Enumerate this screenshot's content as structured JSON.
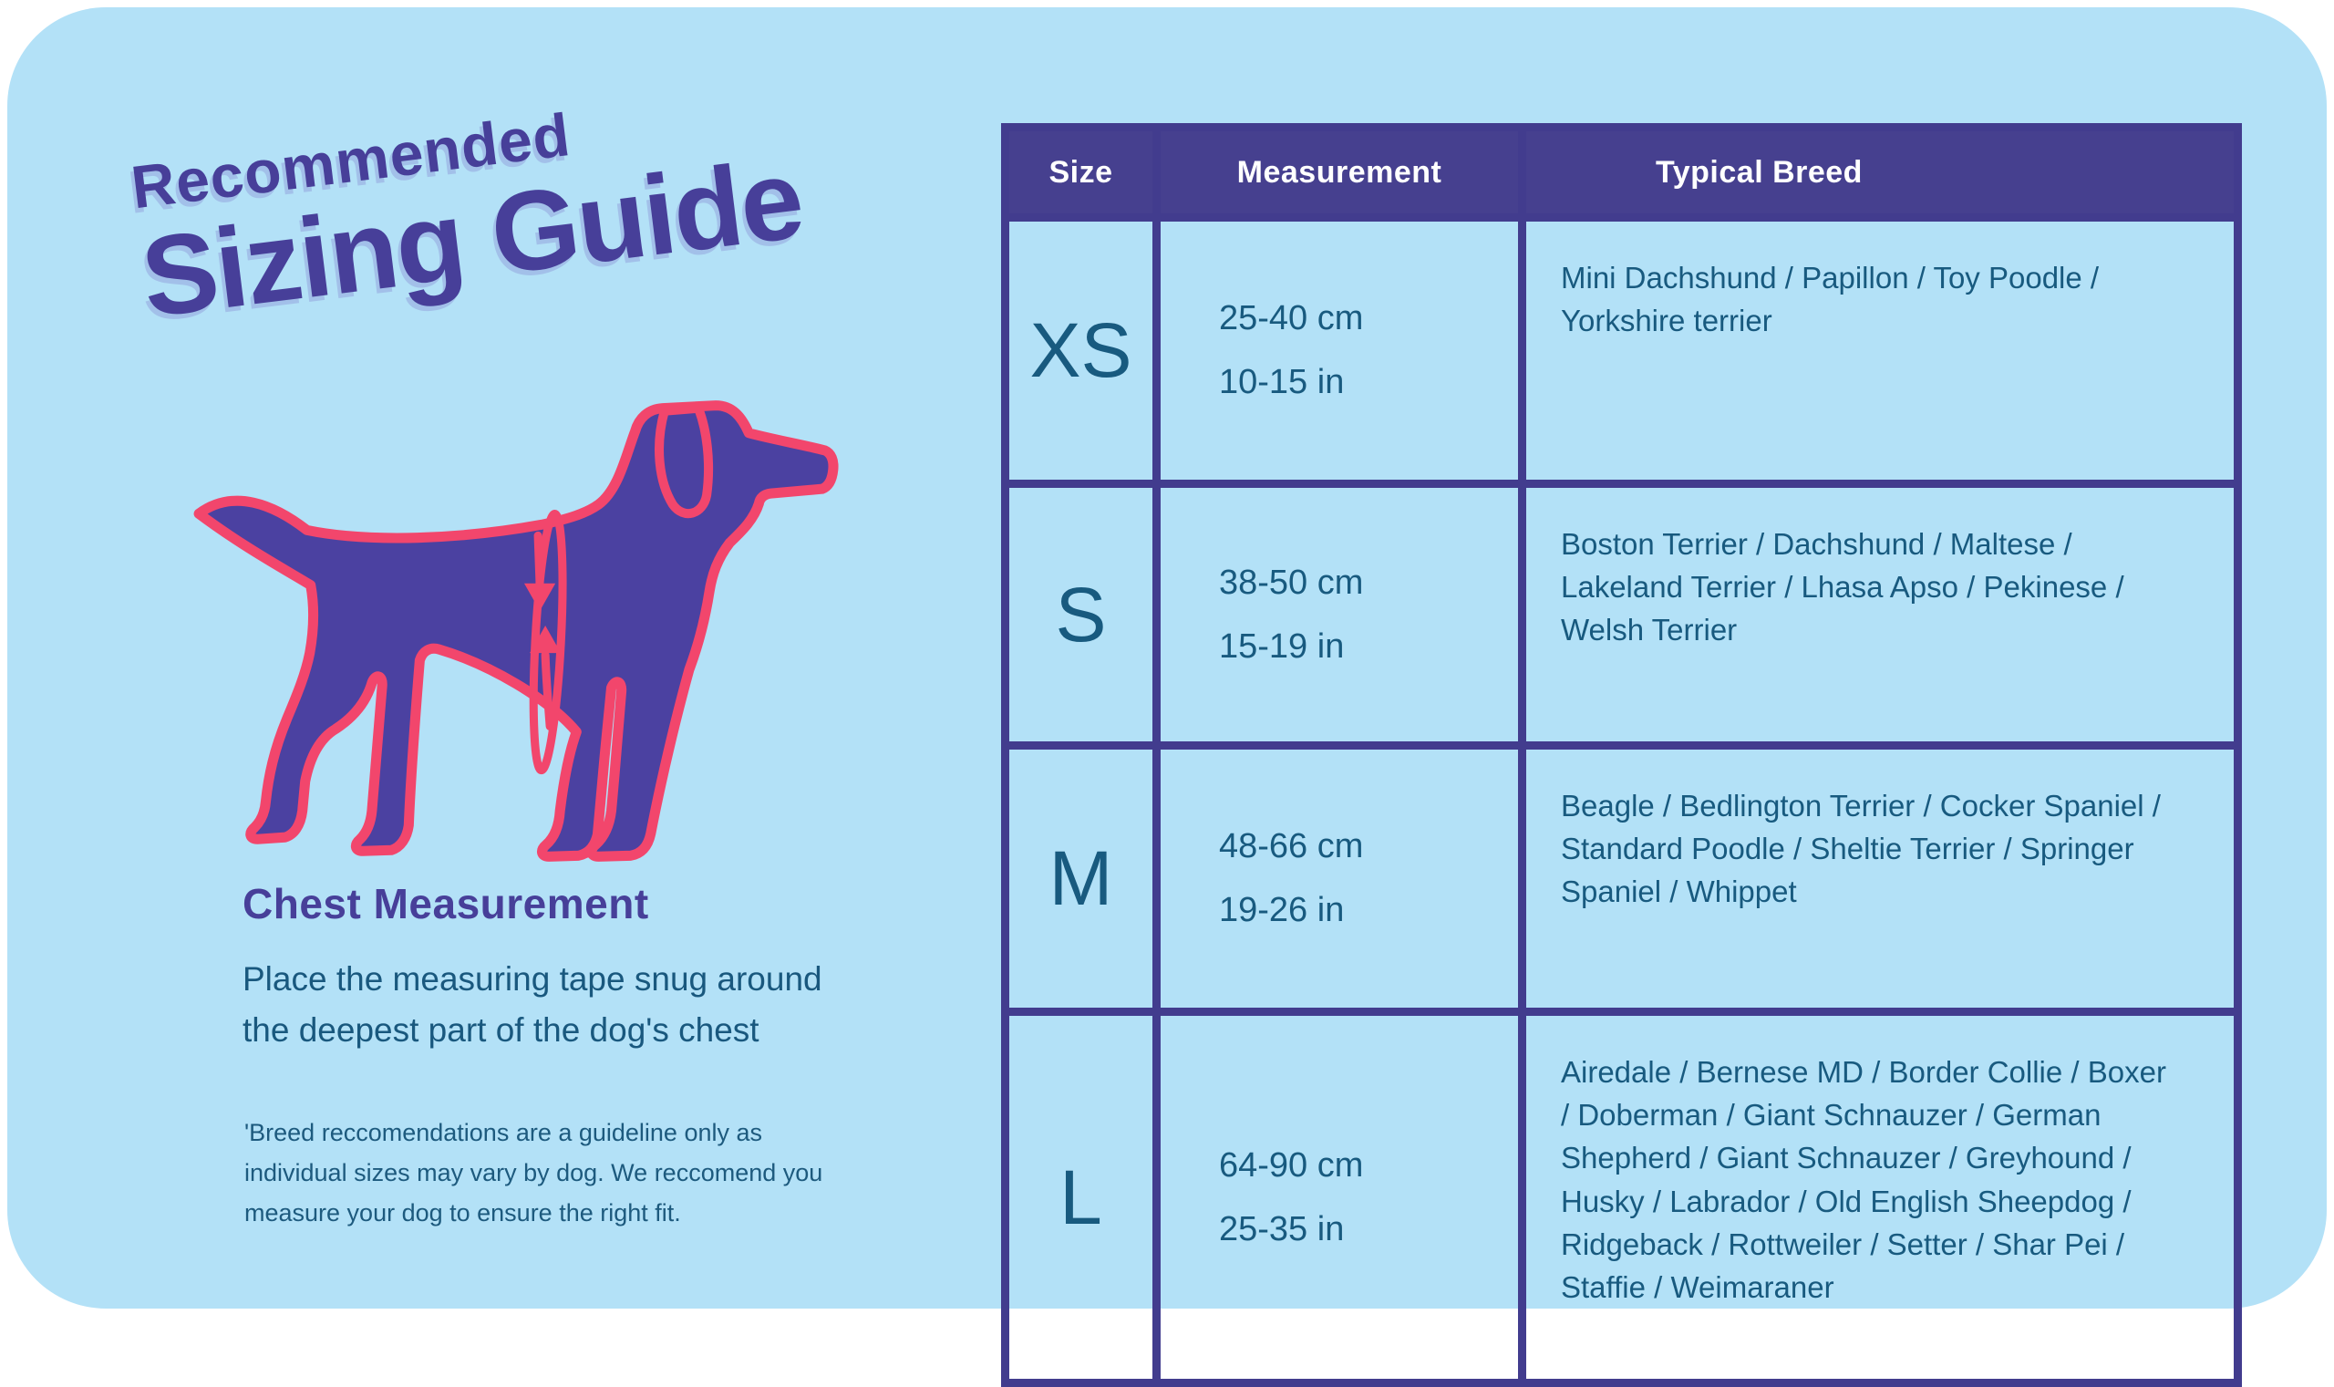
{
  "colors": {
    "background": "#b3e1f7",
    "table_purple": "#46408f",
    "border_purple": "#423c8e",
    "title_purple": "#473f99",
    "text_teal": "#185a7f",
    "dog_body_purple": "#4b41a1",
    "outline_pink": "#f2466c",
    "header_text": "#ffffff"
  },
  "title": {
    "line1": "Recommended",
    "line2": "Sizing Guide"
  },
  "icons": {
    "dog": "dog-silhouette",
    "ear": "dog-ear",
    "tape": "measuring-tape-loop",
    "arrow_down": "tape-arrow-down",
    "arrow_up": "tape-arrow-up"
  },
  "chest_section": {
    "heading": "Chest Measurement",
    "lines": [
      "Place the measuring tape snug around",
      "the deepest part of the dog's chest"
    ],
    "footnote_lines": [
      "'Breed reccomendations are a guideline only as",
      "individual sizes may vary by dog. We reccomend you",
      "measure your dog to ensure the right fit."
    ]
  },
  "table": {
    "headers": [
      "Size",
      "Measurement",
      "Typical Breed"
    ],
    "rows": [
      {
        "size": "XS",
        "cm": "25-40 cm",
        "inches": "10-15 in",
        "breeds": "Mini Dachshund / Papillon / Toy Poodle / Yorkshire terrier"
      },
      {
        "size": "S",
        "cm": "38-50 cm",
        "inches": "15-19 in",
        "breeds": "Boston Terrier / Dachshund / Maltese / Lakeland Terrier / Lhasa Apso / Pekinese / Welsh Terrier"
      },
      {
        "size": "M",
        "cm": "48-66 cm",
        "inches": "19-26 in",
        "breeds": "Beagle / Bedlington Terrier / Cocker Spaniel / Standard Poodle / Sheltie Terrier / Springer Spaniel / Whippet"
      },
      {
        "size": "L",
        "cm": "64-90 cm",
        "inches": "25-35 in",
        "breeds": "Airedale / Bernese MD / Border Collie / Boxer / Doberman / Giant Schnauzer / German Shepherd / Giant Schnauzer / Greyhound / Husky / Labrador / Old English Sheepdog / Ridgeback / Rottweiler / Setter / Shar Pei / Staffie / Weimaraner"
      }
    ]
  }
}
